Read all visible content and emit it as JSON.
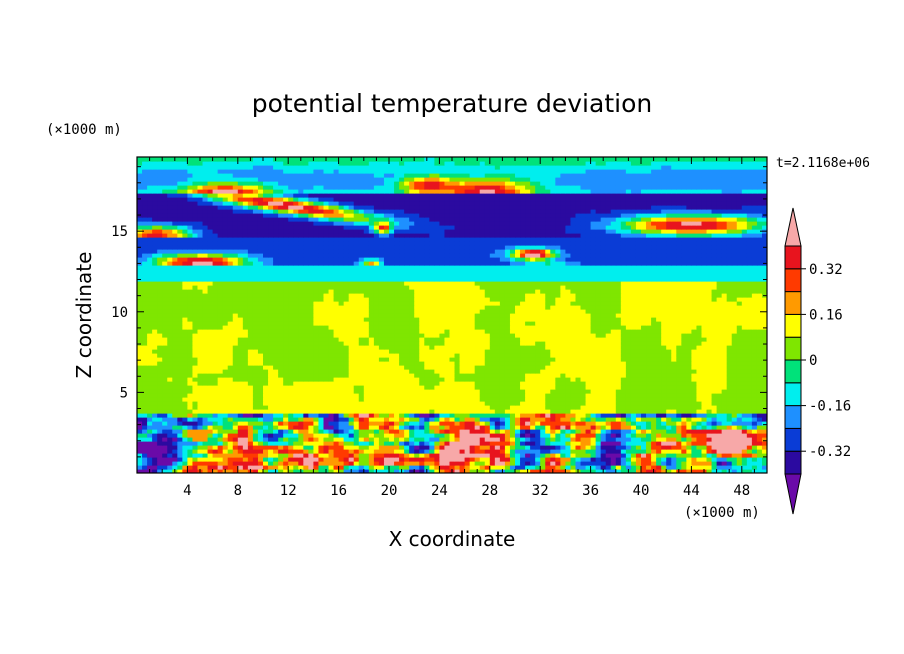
{
  "chart_data": {
    "type": "heatmap",
    "title": "potential temperature deviation",
    "xlabel": "X coordinate",
    "ylabel": "Z coordinate",
    "x_unit": "(×1000 m)",
    "y_unit": "(×1000 m)",
    "time_label": "t=2.1168e+06",
    "xlim": [
      0,
      50
    ],
    "ylim": [
      0,
      19.6
    ],
    "x_ticks": [
      4,
      8,
      12,
      16,
      20,
      24,
      28,
      32,
      36,
      40,
      44,
      48
    ],
    "y_ticks": [
      5,
      10,
      15
    ],
    "colorbar": {
      "levels": [
        -0.4,
        -0.32,
        -0.24,
        -0.16,
        -0.08,
        0,
        0.08,
        0.16,
        0.24,
        0.32,
        0.4
      ],
      "labels": [
        "0.32",
        "0.16",
        "0",
        "-0.16",
        "-0.32"
      ],
      "label_values": [
        0.32,
        0.16,
        0,
        -0.16,
        -0.32
      ],
      "colors": [
        "#6a0aa8",
        "#2b0aa0",
        "#0a3cd6",
        "#1e90ff",
        "#00eeee",
        "#00e27a",
        "#7fe600",
        "#ffff00",
        "#ff9a00",
        "#ff3a00",
        "#e8141e",
        "#f7a8a8"
      ],
      "extend": "both"
    },
    "regions": [
      {
        "z": [
          0,
          3.6
        ],
        "level": -0.08,
        "pattern": "mixed"
      },
      {
        "z": [
          3.6,
          11.8
        ],
        "level": 0.04,
        "pattern": "patchy"
      },
      {
        "z": [
          11.8,
          12.9
        ],
        "level": -0.12,
        "pattern": "band"
      },
      {
        "z": [
          12.9,
          14.6
        ],
        "level": -0.3,
        "pattern": "band"
      },
      {
        "z": [
          14.6,
          17.3
        ],
        "level": -0.36,
        "pattern": "band"
      },
      {
        "z": [
          17.3,
          19.6
        ],
        "level": 0.06,
        "pattern": "patchy"
      }
    ]
  }
}
